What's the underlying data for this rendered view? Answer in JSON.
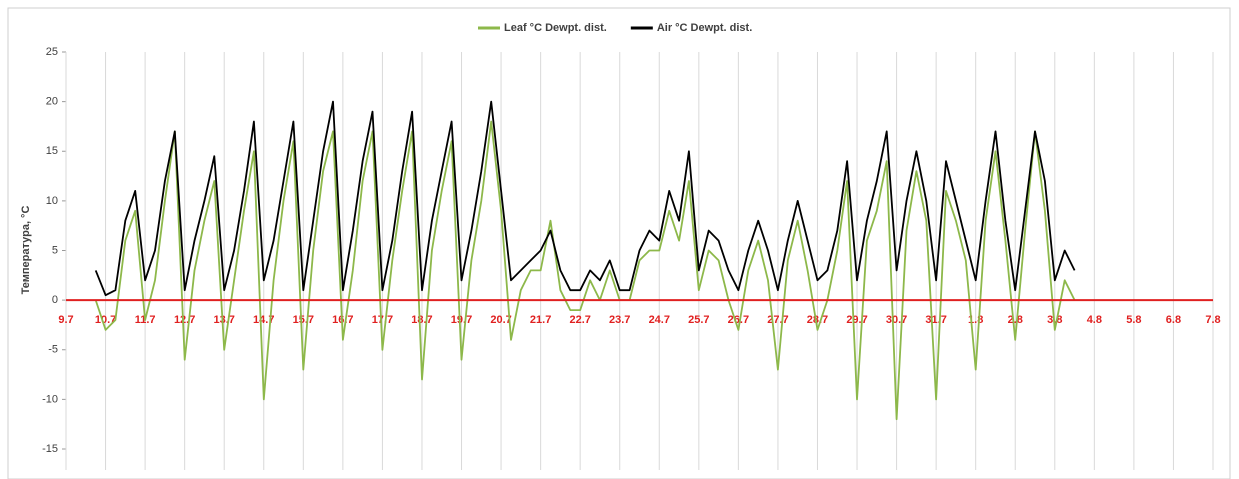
{
  "chart_data": {
    "type": "line",
    "y_label": "Температура, °C",
    "xlim": [
      0,
      29
    ],
    "xticks": [
      {
        "value": 0,
        "label": "9.7"
      },
      {
        "value": 1,
        "label": "10.7"
      },
      {
        "value": 2,
        "label": "11.7"
      },
      {
        "value": 3,
        "label": "12.7"
      },
      {
        "value": 4,
        "label": "13.7"
      },
      {
        "value": 5,
        "label": "14.7"
      },
      {
        "value": 6,
        "label": "15.7"
      },
      {
        "value": 7,
        "label": "16.7"
      },
      {
        "value": 8,
        "label": "17.7"
      },
      {
        "value": 9,
        "label": "18.7"
      },
      {
        "value": 10,
        "label": "19.7"
      },
      {
        "value": 11,
        "label": "20.7"
      },
      {
        "value": 12,
        "label": "21.7"
      },
      {
        "value": 13,
        "label": "22.7"
      },
      {
        "value": 14,
        "label": "23.7"
      },
      {
        "value": 15,
        "label": "24.7"
      },
      {
        "value": 16,
        "label": "25.7"
      },
      {
        "value": 17,
        "label": "26.7"
      },
      {
        "value": 18,
        "label": "27.7"
      },
      {
        "value": 19,
        "label": "28.7"
      },
      {
        "value": 20,
        "label": "29.7"
      },
      {
        "value": 21,
        "label": "30.7"
      },
      {
        "value": 22,
        "label": "31.7"
      },
      {
        "value": 23,
        "label": "1.8"
      },
      {
        "value": 24,
        "label": "2.8"
      },
      {
        "value": 25,
        "label": "3.8"
      },
      {
        "value": 26,
        "label": "4.8"
      },
      {
        "value": 27,
        "label": "5.8"
      },
      {
        "value": 28,
        "label": "6.8"
      },
      {
        "value": 29,
        "label": "7.8"
      }
    ],
    "ylim": [
      -15,
      25
    ],
    "yticks": [
      -15,
      -10,
      -5,
      0,
      5,
      10,
      15,
      20,
      25
    ],
    "grid": true,
    "legend": "top",
    "x": [
      0.75,
      1,
      1.25,
      1.5,
      1.75,
      2,
      2.25,
      2.5,
      2.75,
      3,
      3.25,
      3.5,
      3.75,
      4,
      4.25,
      4.5,
      4.75,
      5,
      5.25,
      5.5,
      5.75,
      6,
      6.25,
      6.5,
      6.75,
      7,
      7.25,
      7.5,
      7.75,
      8,
      8.25,
      8.5,
      8.75,
      9,
      9.25,
      9.5,
      9.75,
      10,
      10.25,
      10.5,
      10.75,
      11,
      11.25,
      11.5,
      11.75,
      12,
      12.25,
      12.5,
      12.75,
      13,
      13.25,
      13.5,
      13.75,
      14,
      14.25,
      14.5,
      14.75,
      15,
      15.25,
      15.5,
      15.75,
      16,
      16.25,
      16.5,
      16.75,
      17,
      17.25,
      17.5,
      17.75,
      18,
      18.25,
      18.5,
      18.75,
      19,
      19.25,
      19.5,
      19.75,
      20,
      20.25,
      20.5,
      20.75,
      21,
      21.25,
      21.5,
      21.75,
      22,
      22.25,
      22.5,
      22.75,
      23,
      23.25,
      23.5,
      23.75,
      24,
      24.25,
      24.5,
      24.75,
      25,
      25.25,
      25.5
    ],
    "series": [
      {
        "name": "Leaf °C Dewpt. dist.",
        "color": "#8db84a",
        "values": [
          0,
          -3,
          -2,
          6,
          9,
          -2,
          2,
          10,
          17,
          -6,
          3,
          8,
          12,
          -5,
          2,
          9,
          15,
          -10,
          2,
          10,
          16,
          -7,
          5,
          13,
          17,
          -4,
          3,
          12,
          17,
          -5,
          4,
          11,
          17,
          -8,
          5,
          11,
          16,
          -6,
          4,
          10,
          18,
          9,
          -4,
          1,
          3,
          3,
          8,
          1,
          -1,
          -1,
          2,
          0,
          3,
          0,
          0,
          4,
          5,
          5,
          9,
          6,
          12,
          1,
          5,
          4,
          0,
          -3,
          3,
          6,
          2,
          -7,
          4,
          8,
          3,
          -3,
          0,
          5,
          12,
          -10,
          6,
          9,
          14,
          -12,
          7,
          13,
          8,
          -10,
          11,
          8,
          4,
          -7,
          8,
          15,
          6,
          -4,
          7,
          17,
          9,
          -3,
          2,
          0
        ]
      },
      {
        "name": "Air °C Dewpt. dist.",
        "color": "#000000",
        "values": [
          3,
          0.5,
          1,
          8,
          11,
          2,
          5,
          12,
          17,
          1,
          6,
          10,
          14.5,
          1,
          5,
          11,
          18,
          2,
          6,
          12,
          18,
          1,
          8,
          15,
          20,
          1,
          7,
          14,
          19,
          1,
          6,
          13,
          19,
          1,
          8,
          13,
          18,
          2,
          7,
          13,
          20,
          11,
          2,
          3,
          4,
          5,
          7,
          3,
          1,
          1,
          3,
          2,
          4,
          1,
          1,
          5,
          7,
          6,
          11,
          8,
          15,
          3,
          7,
          6,
          3,
          1,
          5,
          8,
          5,
          1,
          6,
          10,
          6,
          2,
          3,
          7,
          14,
          2,
          8,
          12,
          17,
          3,
          10,
          15,
          10,
          2,
          14,
          10,
          6,
          2,
          10,
          17,
          8,
          1,
          9,
          17,
          12,
          2,
          5,
          3
        ]
      }
    ]
  }
}
